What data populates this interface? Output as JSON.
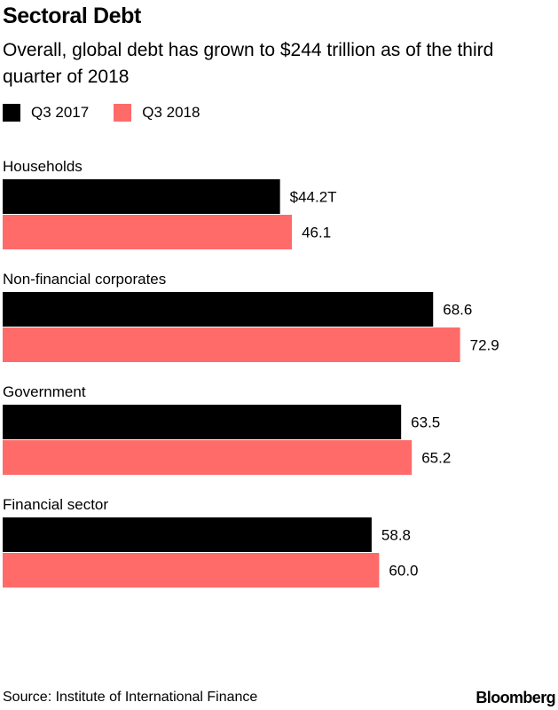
{
  "header": {
    "title": "Sectoral Debt",
    "subtitle": "Overall, global debt has grown to $244 trillion as of the third quarter of 2018"
  },
  "chart_data": {
    "type": "bar",
    "orientation": "horizontal",
    "categories": [
      "Households",
      "Non-financial corporates",
      "Government",
      "Financial sector"
    ],
    "series": [
      {
        "name": "Q3 2017",
        "color": "#000000",
        "values": [
          44.2,
          68.6,
          63.5,
          58.8
        ],
        "labels": [
          "$44.2T",
          "68.6",
          "63.5",
          "58.8"
        ]
      },
      {
        "name": "Q3 2018",
        "color": "#ff6b69",
        "values": [
          46.1,
          72.9,
          65.2,
          60.0
        ],
        "labels": [
          "46.1",
          "72.9",
          "65.2",
          "60.0"
        ]
      }
    ],
    "xlim": [
      0,
      88.5
    ],
    "grid": false,
    "legend": "top-left"
  },
  "footer": {
    "source": "Source: Institute of International Finance",
    "brand": "Bloomberg"
  }
}
